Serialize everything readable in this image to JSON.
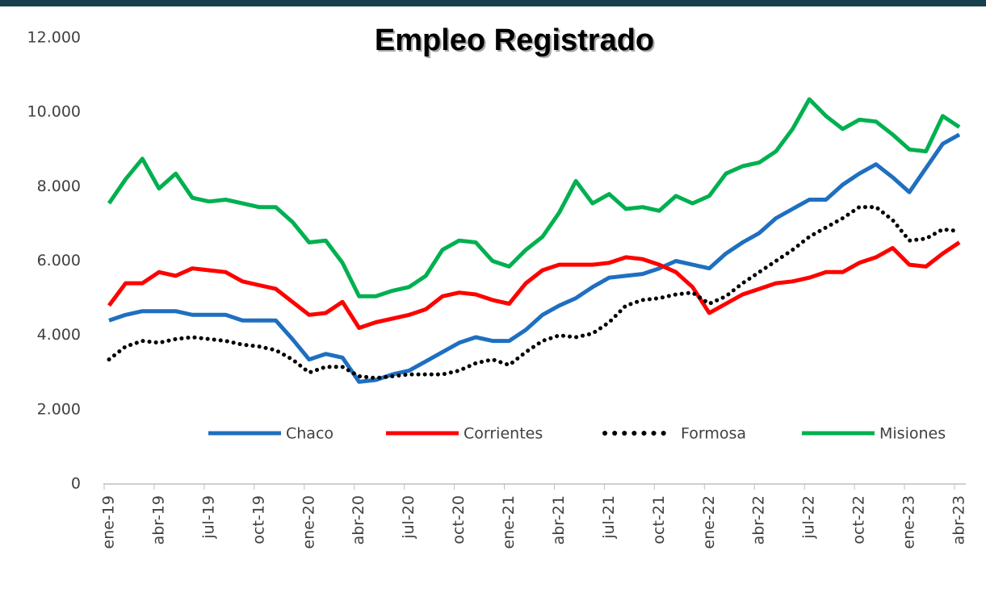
{
  "chart_data": {
    "type": "line",
    "title": "Empleo Registrado",
    "categories": [
      "ene-19",
      null,
      null,
      "abr-19",
      null,
      null,
      "jul-19",
      null,
      null,
      "oct-19",
      null,
      null,
      "ene-20",
      null,
      null,
      "abr-20",
      null,
      null,
      "jul-20",
      null,
      null,
      "oct-20",
      null,
      null,
      "ene-21",
      null,
      null,
      "abr-21",
      null,
      null,
      "jul-21",
      null,
      null,
      "oct-21",
      null,
      null,
      "ene-22",
      null,
      null,
      "abr-22",
      null,
      null,
      "jul-22",
      null,
      null,
      "oct-22",
      null,
      null,
      "ene-23",
      null,
      null,
      "abr-23"
    ],
    "series": [
      {
        "name": "Chaco",
        "color": "#1f6fc0",
        "values": [
          4400,
          4550,
          4650,
          4650,
          4650,
          4550,
          4550,
          4550,
          4400,
          4400,
          4400,
          3900,
          3350,
          3500,
          3400,
          2750,
          2800,
          2950,
          3050,
          3300,
          3550,
          3800,
          3950,
          3850,
          3850,
          4150,
          4550,
          4800,
          5000,
          5300,
          5550,
          5600,
          5650,
          5800,
          6000,
          5900,
          5800,
          6200,
          6500,
          6750,
          7150,
          7400,
          7650,
          7650,
          8050,
          8350,
          8600,
          8250,
          7850,
          8500,
          9150,
          9400
        ]
      },
      {
        "name": "Corrientes",
        "color": "#ff0000",
        "values": [
          4800,
          5400,
          5400,
          5700,
          5600,
          5800,
          5750,
          5700,
          5450,
          5350,
          5250,
          4900,
          4550,
          4600,
          4900,
          4200,
          4350,
          4450,
          4550,
          4700,
          5050,
          5150,
          5100,
          4950,
          4850,
          5400,
          5750,
          5900,
          5900,
          5900,
          5950,
          6100,
          6050,
          5900,
          5700,
          5300,
          4600,
          4850,
          5100,
          5250,
          5400,
          5450,
          5550,
          5700,
          5700,
          5950,
          6100,
          6350,
          5900,
          5850,
          6200,
          6500
        ]
      },
      {
        "name": "Formosa",
        "color": "#000000",
        "dotted": true,
        "values": [
          3350,
          3700,
          3850,
          3800,
          3900,
          3950,
          3900,
          3850,
          3750,
          3700,
          3600,
          3350,
          3000,
          3150,
          3150,
          2900,
          2850,
          2900,
          2950,
          2950,
          2950,
          3050,
          3250,
          3350,
          3200,
          3550,
          3850,
          4000,
          3950,
          4050,
          4350,
          4800,
          4950,
          5000,
          5100,
          5150,
          4850,
          5050,
          5400,
          5700,
          6000,
          6300,
          6650,
          6900,
          7150,
          7450,
          7450,
          7100,
          6550,
          6600,
          6850,
          6800
        ]
      },
      {
        "name": "Misiones",
        "color": "#00b050",
        "values": [
          7550,
          8200,
          8750,
          7950,
          8350,
          7700,
          7600,
          7650,
          7550,
          7450,
          7450,
          7050,
          6500,
          6550,
          5950,
          5050,
          5050,
          5200,
          5300,
          5600,
          6300,
          6550,
          6500,
          6000,
          5850,
          6300,
          6650,
          7300,
          8150,
          7550,
          7800,
          7400,
          7450,
          7350,
          7750,
          7550,
          7750,
          8350,
          8550,
          8650,
          8950,
          9550,
          10350,
          9900,
          9550,
          9800,
          9750,
          9400,
          9000,
          8950,
          9900,
          9600
        ]
      }
    ],
    "ylim": [
      0,
      12000
    ],
    "yticks": [
      0,
      {
        "value": 2000,
        "label": "2.000"
      },
      {
        "value": 4000,
        "label": "4.000"
      },
      {
        "value": 6000,
        "label": "6.000"
      },
      {
        "value": 8000,
        "label": "8.000"
      },
      {
        "value": 10000,
        "label": "10.000"
      },
      {
        "value": 12000,
        "label": "12.000"
      }
    ],
    "grid": false,
    "legend": "bottom-right"
  }
}
